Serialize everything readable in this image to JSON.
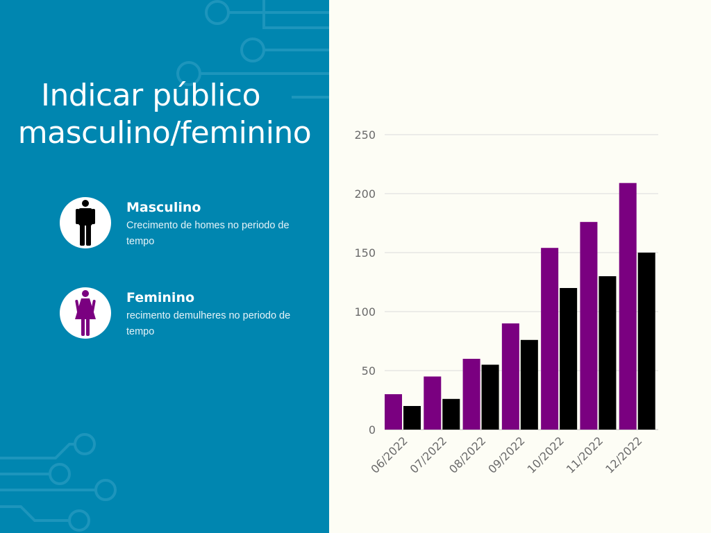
{
  "title": {
    "line1": "Indicar público",
    "line2": "masculino/feminino"
  },
  "legend": [
    {
      "label": "Masculino",
      "description": "Crecimento de homes no periodo de tempo",
      "icon": "male-figure-icon",
      "color": "#000000"
    },
    {
      "label": "Feminino",
      "description": "recimento demulheres no periodo de tempo",
      "icon": "female-figure-icon",
      "color": "#7a0080"
    }
  ],
  "colors": {
    "panel": "#0086b0",
    "background": "#fdfdf5",
    "female": "#7a0080",
    "male": "#000000"
  },
  "chart_data": {
    "type": "bar",
    "categories": [
      "06/2022",
      "07/2022",
      "08/2022",
      "09/2022",
      "10/2022",
      "11/2022",
      "12/2022"
    ],
    "series": [
      {
        "name": "Feminino",
        "color": "#7a0080",
        "values": [
          30,
          45,
          60,
          90,
          154,
          176,
          209
        ]
      },
      {
        "name": "Masculino",
        "color": "#000000",
        "values": [
          20,
          26,
          55,
          76,
          120,
          130,
          150
        ]
      }
    ],
    "ylim": [
      0,
      250
    ],
    "yticks": [
      0,
      50,
      100,
      150,
      200,
      250
    ],
    "grid": true,
    "xlabel": "",
    "ylabel": ""
  }
}
